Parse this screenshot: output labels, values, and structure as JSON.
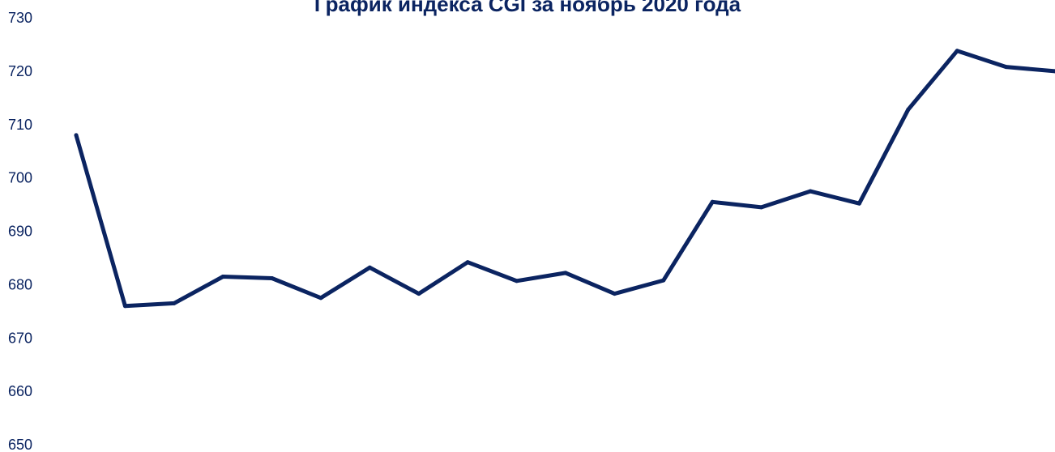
{
  "chart_data": {
    "type": "line",
    "title": "График индекса CGI за ноябрь 2020 года",
    "xlabel": "",
    "ylabel": "",
    "ylim": [
      650,
      730
    ],
    "yticks": [
      650,
      660,
      670,
      680,
      690,
      700,
      710,
      720,
      730
    ],
    "grid": false,
    "series": [
      {
        "values": [
          708,
          676,
          676.5,
          681.5,
          681.2,
          677.5,
          683.2,
          678.3,
          684.2,
          680.7,
          682.2,
          678.3,
          680.8,
          695.5,
          694.5,
          697.5,
          695.2,
          712.8,
          723.8,
          720.8,
          720
        ]
      }
    ],
    "colors": {
      "line": "#0b2461",
      "text": "#0b2461"
    }
  }
}
